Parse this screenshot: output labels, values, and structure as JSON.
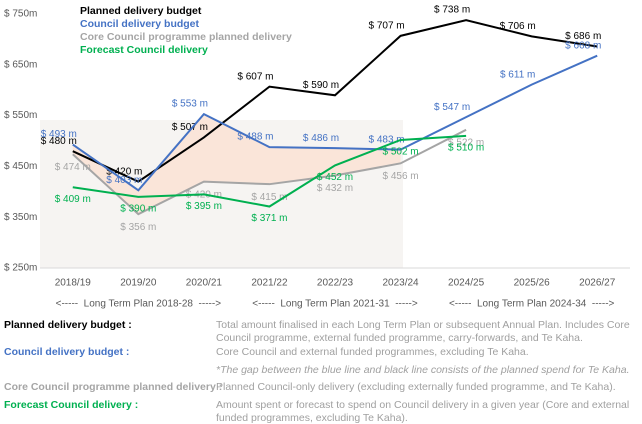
{
  "chart_data": {
    "type": "line",
    "categories": [
      "2018/19",
      "2019/20",
      "2020/21",
      "2021/22",
      "2022/23",
      "2023/24",
      "2024/25",
      "2025/26",
      "2026/27"
    ],
    "series": [
      {
        "name": "Planned delivery budget",
        "color": "#000000",
        "values": [
          480,
          420,
          507,
          607,
          590,
          707,
          738,
          706,
          686
        ],
        "value_labels": [
          "$ 480 m",
          "$ 420 m",
          "$ 507 m",
          "$ 607 m",
          "$ 590 m",
          "$ 707 m",
          "$ 738 m",
          "$ 706 m",
          "$ 686 m"
        ]
      },
      {
        "name": "Council delivery budget",
        "color": "#4472c4",
        "values": [
          493,
          403,
          553,
          488,
          486,
          483,
          547,
          611,
          668
        ],
        "value_labels": [
          "$ 493 m",
          "$ 403 m",
          "$ 553 m",
          "$ 488 m",
          "$ 486 m",
          "$ 483 m",
          "$ 547 m",
          "$ 611 m",
          "$ 668 m"
        ]
      },
      {
        "name": "Core Council programme planned delivery",
        "color": "#a5a5a5",
        "values": [
          474,
          356,
          420,
          415,
          432,
          456,
          522,
          null,
          null
        ],
        "value_labels": [
          "$ 474 m",
          "$ 356 m",
          "$ 420 m",
          "$ 415 m",
          "$ 432 m",
          "$ 456 m",
          "$ 522 m",
          null,
          null
        ]
      },
      {
        "name": "Forecast Council delivery",
        "color": "#00b050",
        "values": [
          409,
          390,
          395,
          371,
          452,
          502,
          510,
          null,
          null
        ],
        "value_labels": [
          "$ 409 m",
          "$ 390 m",
          "$ 395 m",
          "$ 371 m",
          "$ 452 m",
          "$ 502 m",
          "$ 510 m",
          null,
          null
        ]
      }
    ],
    "ylim": [
      250,
      750
    ],
    "yticks": [
      {
        "value": 250,
        "label": "$ 250m"
      },
      {
        "value": 350,
        "label": "$ 350m"
      },
      {
        "value": 450,
        "label": "$ 450m"
      },
      {
        "value": 550,
        "label": "$ 550m"
      },
      {
        "value": 650,
        "label": "$ 650m"
      },
      {
        "value": 750,
        "label": "$ 750m"
      }
    ],
    "annotations": [
      "<-----  Long Term Plan 2018-28  ----->",
      "<-----  Long Term Plan 2021-31  ----->",
      "<-----  Long Term Plan 2024-34  ----->"
    ]
  },
  "definitions": [
    {
      "term": "Planned delivery budget :",
      "text": "Total amount finalised in each Long Term Plan or subsequent Annual Plan. Includes Core Council programme, external funded programme, carry-forwards, and Te Kaha."
    },
    {
      "term": "Council delivery budget :",
      "text": "Core Council and external funded programmes, excluding Te Kaha."
    },
    {
      "term": "Core Council programme planned delivery :",
      "text": "Planned Council-only delivery (excluding externally funded programme, and Te Kaha)."
    },
    {
      "term": "Forecast Council delivery :",
      "text": "Amount spent or forecast to spend on Council delivery in a given year (Core and external funded programmes, excluding Te Kaha)."
    }
  ],
  "note": "*The gap between the blue line and black line consists of the planned spend for Te Kaha."
}
